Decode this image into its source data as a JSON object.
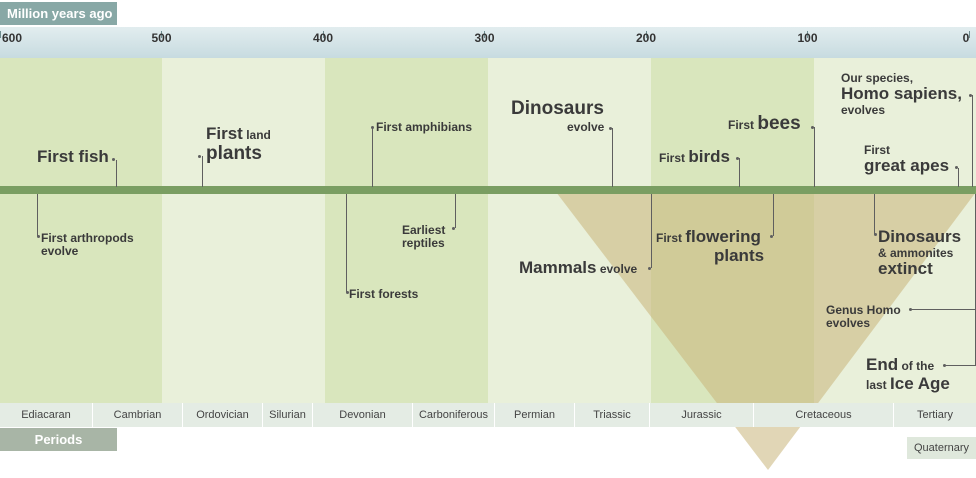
{
  "header": {
    "mya_label": "Million years ago",
    "periods_label": "Periods"
  },
  "scale": {
    "ticks": [
      {
        "label": "600",
        "x": 600
      },
      {
        "label": "500",
        "x": 500
      },
      {
        "label": "400",
        "x": 400
      },
      {
        "label": "300",
        "x": 300
      },
      {
        "label": "200",
        "x": 200
      },
      {
        "label": "100",
        "x": 100
      },
      {
        "label": "0",
        "x": 0
      }
    ]
  },
  "events_above": {
    "first_fish": "First fish",
    "first_land_plants_a": "First",
    "first_land_plants_b": "land",
    "first_land_plants_c": "plants",
    "first_amphibians": "First amphibians",
    "dinosaurs_a": "Dinosaurs",
    "dinosaurs_b": "evolve",
    "first_birds_a": "First",
    "first_birds_b": "birds",
    "first_bees_a": "First",
    "first_bees_b": "bees",
    "homo_a": "Our species,",
    "homo_b": "Homo sapiens,",
    "homo_c": "evolves",
    "apes_a": "First",
    "apes_b": "great apes"
  },
  "events_below": {
    "arthropods_a": "First arthropods",
    "arthropods_b": "evolve",
    "reptiles_a": "Earliest",
    "reptiles_b": "reptiles",
    "forests": "First forests",
    "mammals_a": "Mammals",
    "mammals_b": "evolve",
    "flowering_a": "First",
    "flowering_b": "flowering",
    "flowering_c": "plants",
    "extinct_a": "Dinosaurs",
    "extinct_b": "& ammonites",
    "extinct_c": "extinct",
    "genus_a": "Genus Homo",
    "genus_b": "evolves",
    "ice_a": "End",
    "ice_b": "of the",
    "ice_c": "last",
    "ice_d": "Ice Age"
  },
  "periods": [
    "Ediacaran",
    "Cambrian",
    "Ordovician",
    "Silurian",
    "Devonian",
    "Carboniferous",
    "Permian",
    "Triassic",
    "Jurassic",
    "Cretaceous",
    "Tertiary"
  ],
  "quaternary": "Quaternary",
  "colors": {
    "band_dark": "#d9e6bd",
    "band_light": "#e9f0da",
    "axis_line": "#7a9e62",
    "triangle": "#c9b47a"
  }
}
